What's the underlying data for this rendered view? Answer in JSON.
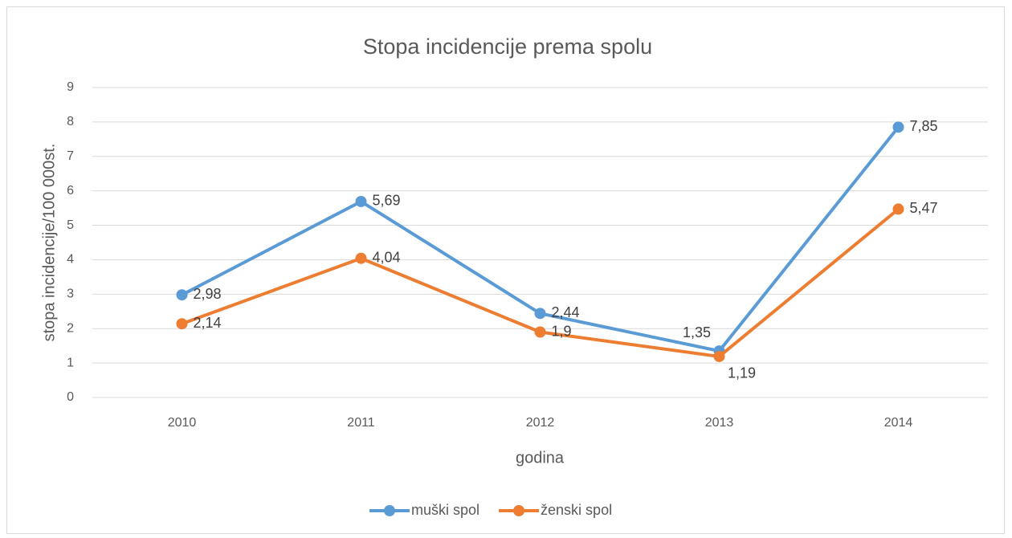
{
  "chart_data": {
    "type": "line",
    "title": "Stopa incidencije prema spolu",
    "x_label": "godina",
    "y_label": "stopa incidencije/100 000st.",
    "categories": [
      "2010",
      "2011",
      "2012",
      "2013",
      "2014"
    ],
    "series": [
      {
        "name": "muški spol",
        "color": "#5b9bd5",
        "values": [
          2.98,
          5.69,
          2.44,
          1.35,
          7.85
        ],
        "value_labels": [
          "2,98",
          "5,69",
          "2,44",
          "1,35",
          "7,85"
        ]
      },
      {
        "name": "ženski spol",
        "color": "#ed7d31",
        "values": [
          2.14,
          4.04,
          1.9,
          1.19,
          5.47
        ],
        "value_labels": [
          "2,14",
          "4,04",
          "1,9",
          "1,19",
          "5,47"
        ]
      }
    ],
    "ylim": [
      0,
      9
    ],
    "yticks": [
      0,
      1,
      2,
      3,
      4,
      5,
      6,
      7,
      8,
      9
    ],
    "grid": true,
    "legend": "bottom"
  }
}
